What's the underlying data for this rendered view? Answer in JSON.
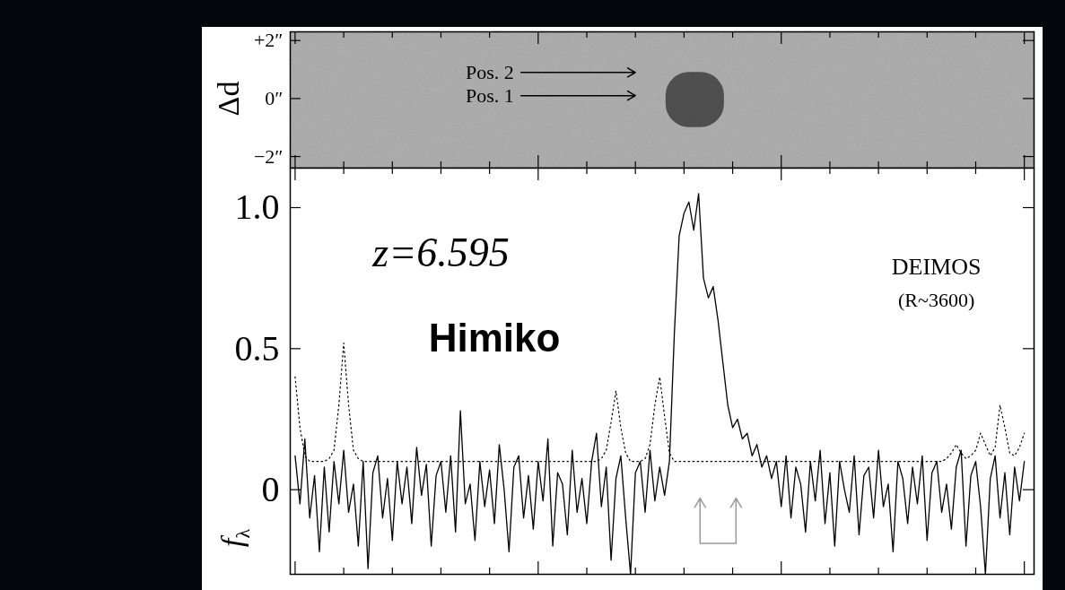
{
  "chart_data": [
    {
      "type": "image",
      "y_label": "Δd",
      "xlim": [
        9149,
        9302
      ],
      "xticks": [
        9150,
        9160,
        9170,
        9180,
        9190,
        9200,
        9210,
        9220,
        9230,
        9240,
        9250,
        9260,
        9270,
        9280,
        9290,
        9300
      ],
      "tick_labels": "y",
      "ylim": [
        -2.4,
        2.3
      ],
      "yticks": [
        {
          "value": 2,
          "label": "+2″"
        },
        {
          "value": 0,
          "label": "0″"
        },
        {
          "value": -2,
          "label": "−2″"
        }
      ],
      "color": "#b3b3b3",
      "source": {
        "x": [
          9226.3,
          9238.3
        ],
        "y": [
          -1.0,
          0.9
        ],
        "color": "#3a3a3a"
      },
      "annotations": [
        {
          "text": "Pos. 2",
          "x": 9195,
          "y": 0.9,
          "arrow_to": 9220
        },
        {
          "text": "Pos. 1",
          "x": 9195,
          "y": 0.1,
          "arrow_to": 9220
        }
      ]
    },
    {
      "type": "line",
      "y_label": "fλ",
      "xlim": [
        9149,
        9302
      ],
      "xticks": [
        9150,
        9160,
        9170,
        9180,
        9190,
        9200,
        9210,
        9220,
        9230,
        9240,
        9250,
        9260,
        9270,
        9280,
        9290,
        9300
      ],
      "tick_labels": "y",
      "ylim": [
        -0.3,
        1.14
      ],
      "yticks": [
        0,
        0.5,
        {
          "value": 1,
          "label": "1.0"
        }
      ],
      "x": [
        9150,
        9151,
        9152,
        9153,
        9154,
        9155,
        9156,
        9157,
        9158,
        9159,
        9160,
        9161,
        9162,
        9163,
        9164,
        9165,
        9166,
        9167,
        9168,
        9169,
        9170,
        9171,
        9172,
        9173,
        9174,
        9175,
        9176,
        9177,
        9178,
        9179,
        9180,
        9181,
        9182,
        9183,
        9184,
        9185,
        9186,
        9187,
        9188,
        9189,
        9190,
        9191,
        9192,
        9193,
        9194,
        9195,
        9196,
        9197,
        9198,
        9199,
        9200,
        9201,
        9202,
        9203,
        9204,
        9205,
        9206,
        9207,
        9208,
        9209,
        9210,
        9211,
        9212,
        9213,
        9214,
        9215,
        9216,
        9217,
        9218,
        9219,
        9220,
        9221,
        9222,
        9223,
        9224,
        9225,
        9226,
        9227,
        9228,
        9229,
        9230,
        9231,
        9232,
        9233,
        9234,
        9235,
        9236,
        9237,
        9238,
        9239,
        9240,
        9241,
        9242,
        9243,
        9244,
        9245,
        9246,
        9247,
        9248,
        9249,
        9250,
        9251,
        9252,
        9253,
        9254,
        9255,
        9256,
        9257,
        9258,
        9259,
        9260,
        9261,
        9262,
        9263,
        9264,
        9265,
        9266,
        9267,
        9268,
        9269,
        9270,
        9271,
        9272,
        9273,
        9274,
        9275,
        9276,
        9277,
        9278,
        9279,
        9280,
        9281,
        9282,
        9283,
        9284,
        9285,
        9286,
        9287,
        9288,
        9289,
        9290,
        9291,
        9292,
        9293,
        9294,
        9295,
        9296,
        9297,
        9298,
        9299,
        9300
      ],
      "series": [
        {
          "color": "#000000",
          "line_style": "solid",
          "values": [
            0.12,
            -0.05,
            0.18,
            -0.1,
            0.05,
            -0.22,
            0.08,
            -0.15,
            0.1,
            -0.05,
            0.14,
            -0.08,
            0.02,
            -0.2,
            0.1,
            -0.28,
            0.06,
            0.12,
            -0.1,
            0.04,
            -0.18,
            0.1,
            -0.05,
            0.08,
            -0.12,
            0.15,
            -0.02,
            0.09,
            -0.2,
            0.05,
            0.1,
            -0.08,
            0.12,
            -0.15,
            0.28,
            -0.05,
            0.02,
            -0.18,
            0.1,
            -0.06,
            0.07,
            -0.12,
            0.16,
            0.0,
            -0.22,
            0.08,
            0.12,
            -0.1,
            0.05,
            -0.14,
            0.1,
            -0.04,
            0.18,
            -0.2,
            0.06,
            0.02,
            -0.16,
            0.14,
            -0.08,
            0.04,
            -0.12,
            0.1,
            0.2,
            -0.06,
            0.08,
            -0.25,
            0.04,
            0.12,
            -0.1,
            -0.3,
            0.06,
            0.1,
            -0.08,
            0.14,
            -0.04,
            0.08,
            -0.02,
            0.1,
            0.55,
            0.9,
            0.98,
            1.02,
            0.92,
            1.05,
            0.75,
            0.68,
            0.72,
            0.6,
            0.45,
            0.3,
            0.22,
            0.25,
            0.18,
            0.2,
            0.12,
            0.16,
            0.08,
            0.12,
            0.04,
            0.1,
            -0.06,
            0.12,
            -0.1,
            0.08,
            0.02,
            -0.15,
            0.1,
            -0.04,
            0.14,
            -0.12,
            0.06,
            -0.2,
            0.1,
            0.0,
            -0.08,
            0.12,
            -0.16,
            0.05,
            0.08,
            -0.1,
            0.14,
            -0.06,
            0.02,
            -0.22,
            0.1,
            0.04,
            -0.12,
            0.08,
            -0.05,
            0.12,
            -0.18,
            0.06,
            0.1,
            -0.08,
            0.02,
            -0.14,
            0.08,
            0.14,
            -0.2,
            0.05,
            0.1,
            -0.06,
            -0.3,
            0.04,
            0.12,
            -0.1,
            0.06,
            -0.16,
            0.08,
            -0.04,
            0.1
          ]
        },
        {
          "color": "#000000",
          "line_style": "dotted",
          "values": [
            0.4,
            0.22,
            0.12,
            0.1,
            0.1,
            0.1,
            0.1,
            0.11,
            0.14,
            0.3,
            0.52,
            0.3,
            0.14,
            0.11,
            0.1,
            0.1,
            0.1,
            0.1,
            0.1,
            0.1,
            0.1,
            0.1,
            0.1,
            0.1,
            0.1,
            0.1,
            0.1,
            0.1,
            0.1,
            0.1,
            0.1,
            0.1,
            0.1,
            0.1,
            0.1,
            0.1,
            0.1,
            0.1,
            0.1,
            0.1,
            0.1,
            0.1,
            0.1,
            0.1,
            0.1,
            0.1,
            0.1,
            0.1,
            0.1,
            0.1,
            0.1,
            0.1,
            0.1,
            0.1,
            0.1,
            0.1,
            0.1,
            0.1,
            0.1,
            0.1,
            0.1,
            0.1,
            0.1,
            0.11,
            0.14,
            0.24,
            0.35,
            0.22,
            0.13,
            0.1,
            0.1,
            0.1,
            0.11,
            0.16,
            0.3,
            0.4,
            0.26,
            0.13,
            0.1,
            0.1,
            0.1,
            0.1,
            0.1,
            0.1,
            0.1,
            0.1,
            0.1,
            0.1,
            0.1,
            0.1,
            0.1,
            0.1,
            0.1,
            0.1,
            0.1,
            0.1,
            0.1,
            0.1,
            0.1,
            0.1,
            0.1,
            0.1,
            0.1,
            0.1,
            0.1,
            0.1,
            0.1,
            0.1,
            0.1,
            0.1,
            0.1,
            0.1,
            0.1,
            0.1,
            0.1,
            0.1,
            0.1,
            0.1,
            0.1,
            0.1,
            0.1,
            0.1,
            0.1,
            0.1,
            0.1,
            0.1,
            0.1,
            0.1,
            0.1,
            0.1,
            0.1,
            0.1,
            0.1,
            0.1,
            0.11,
            0.13,
            0.16,
            0.13,
            0.11,
            0.12,
            0.14,
            0.2,
            0.16,
            0.12,
            0.15,
            0.3,
            0.22,
            0.13,
            0.12,
            0.15,
            0.2
          ]
        }
      ],
      "annotations": [
        {
          "text": "z=6.595",
          "x": 9180,
          "y": 0.84
        },
        {
          "text": "Himiko",
          "x": 9191,
          "y": 0.535
        },
        {
          "text": "DEIMOS",
          "x": 9281.9,
          "y": 0.79
        },
        {
          "text": "(R~3600)",
          "x": 9281.9,
          "y": 0.67
        }
      ],
      "arrows": {
        "x": [
          9233.3,
          9240.7
        ],
        "y": [
          -0.19,
          -0.03
        ],
        "color": "#999999"
      }
    }
  ]
}
